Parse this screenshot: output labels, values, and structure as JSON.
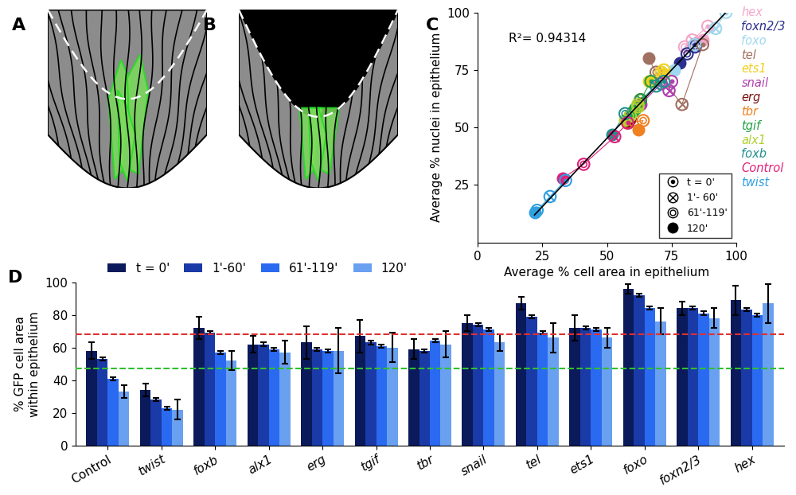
{
  "chart_data": [
    {
      "type": "illustration",
      "title": "A"
    },
    {
      "type": "illustration",
      "title": "B"
    },
    {
      "type": "scatter",
      "title": "C",
      "x_label": "Average % cell area in epithelium",
      "y_label": "Average % nuclei in epithelium",
      "xlim": [
        0,
        100
      ],
      "ylim": [
        0,
        100
      ],
      "xticks": [
        0,
        25,
        50,
        75,
        100
      ],
      "yticks": [
        25,
        50,
        75,
        100
      ],
      "annotation": "R²= 0.94314",
      "trend": {
        "x": [
          22,
          96
        ],
        "values": [
          12,
          100
        ],
        "color": "#000000"
      },
      "time_markers": [
        {
          "name": "t = 0'",
          "marker": "dotted_circle"
        },
        {
          "name": "1'- 60'",
          "marker": "crossed_circle"
        },
        {
          "name": "61'-119'",
          "marker": "double_circle"
        },
        {
          "name": "120'",
          "marker": "filled_circle"
        }
      ],
      "legend": "lower right",
      "series": [
        {
          "name": "hex",
          "color": "#f4a6c8",
          "x": [
            89,
            83,
            80,
            87
          ],
          "values": [
            94,
            88,
            85,
            88
          ]
        },
        {
          "name": "foxn2/3",
          "color": "#2b2f8f",
          "x": [
            84,
            84,
            81,
            78
          ],
          "values": [
            86,
            85,
            82,
            78
          ]
        },
        {
          "name": "foxo",
          "color": "#9fd8f0",
          "x": [
            96,
            92,
            84,
            76
          ],
          "values": [
            100,
            93,
            86,
            75
          ]
        },
        {
          "name": "tel",
          "color": "#a07060",
          "x": [
            87,
            79,
            69,
            66
          ],
          "values": [
            86,
            60,
            74,
            80
          ]
        },
        {
          "name": "ets1",
          "color": "#f0d020",
          "x": [
            72,
            72,
            71,
            66
          ],
          "values": [
            75,
            73,
            74,
            70
          ]
        },
        {
          "name": "snail",
          "color": "#b040b0",
          "x": [
            75,
            74,
            71,
            63
          ],
          "values": [
            70,
            66,
            69,
            60
          ]
        },
        {
          "name": "erg",
          "color": "#7a1010",
          "x": [
            63,
            59,
            58,
            58
          ],
          "values": [
            62,
            54,
            52,
            52
          ]
        },
        {
          "name": "tbr",
          "color": "#f08020",
          "x": [
            59,
            58,
            64,
            62
          ],
          "values": [
            55,
            52,
            53,
            49
          ]
        },
        {
          "name": "tgif",
          "color": "#20a040",
          "x": [
            67,
            63,
            61,
            60
          ],
          "values": [
            70,
            62,
            58,
            57
          ]
        },
        {
          "name": "alx1",
          "color": "#b0d030",
          "x": [
            62,
            62,
            59,
            57
          ],
          "values": [
            60,
            59,
            55,
            53
          ]
        },
        {
          "name": "foxb",
          "color": "#209090",
          "x": [
            72,
            69,
            57,
            52
          ],
          "values": [
            70,
            68,
            56,
            47
          ]
        },
        {
          "name": "Control",
          "color": "#e0207a",
          "x": [
            58,
            53,
            41,
            33
          ],
          "values": [
            52,
            46,
            34,
            28
          ]
        },
        {
          "name": "twist",
          "color": "#30a0e0",
          "x": [
            34,
            28,
            23,
            22
          ],
          "values": [
            27,
            20,
            14,
            13
          ]
        }
      ]
    },
    {
      "type": "bar",
      "title": "D",
      "y_label": "% GFP cell area\nwithin epithelium",
      "ylim": [
        0,
        100
      ],
      "yticks": [
        0,
        20,
        40,
        60,
        80,
        100
      ],
      "legend": "top",
      "categories": [
        "Control",
        "twist",
        "foxb",
        "alx1",
        "erg",
        "tgif",
        "tbr",
        "snail",
        "tel",
        "ets1",
        "foxo",
        "foxn2/3",
        "hex"
      ],
      "reference_lines": [
        {
          "value": 68,
          "color": "#e03030"
        },
        {
          "value": 47,
          "color": "#30c030"
        }
      ],
      "series": [
        {
          "name": "t = 0'",
          "color": "#0a1a5a",
          "values": [
            58,
            34,
            72,
            62,
            63,
            67,
            59,
            75,
            87,
            72,
            96,
            84,
            89
          ],
          "errors": [
            5,
            4,
            7,
            5,
            10,
            10,
            6,
            5,
            4,
            8,
            3,
            4,
            9
          ]
        },
        {
          "name": "1'-60'",
          "color": "#1a3aa8",
          "values": [
            53,
            28,
            69,
            62,
            59,
            63,
            58,
            74,
            79,
            72,
            92,
            84,
            83
          ],
          "errors": [
            1,
            1,
            1,
            1,
            1,
            1,
            1,
            1,
            1,
            1,
            1,
            1,
            1
          ]
        },
        {
          "name": "61'-119'",
          "color": "#2a6af0",
          "values": [
            41,
            23,
            57,
            59,
            58,
            61,
            64,
            71,
            69,
            71,
            84,
            81,
            80
          ],
          "errors": [
            1,
            1,
            1,
            1,
            1,
            1,
            1,
            1,
            1,
            1,
            1,
            1,
            1
          ]
        },
        {
          "name": "120'",
          "color": "#6aa0f0",
          "values": [
            33,
            22,
            52,
            57,
            58,
            60,
            62,
            63,
            66,
            66,
            76,
            78,
            87
          ],
          "errors": [
            4,
            6,
            6,
            7,
            14,
            9,
            8,
            5,
            9,
            6,
            8,
            6,
            12
          ]
        }
      ]
    }
  ]
}
